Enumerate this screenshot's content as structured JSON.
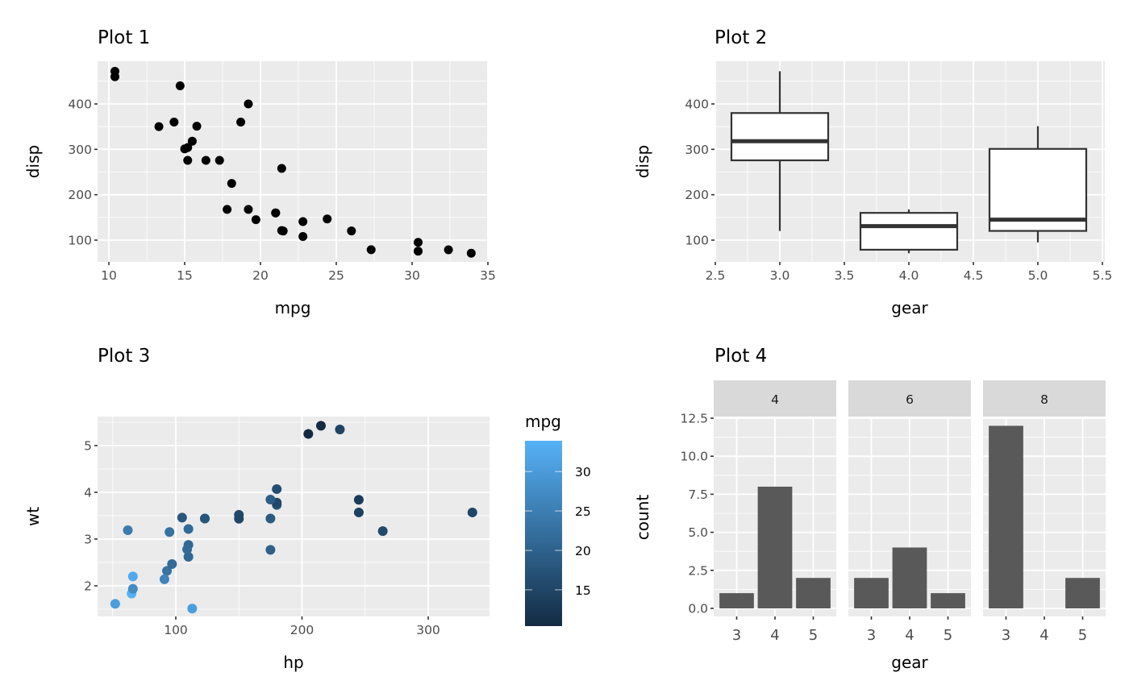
{
  "chart_data": [
    {
      "id": "plot1",
      "type": "scatter",
      "title": "Plot 1",
      "xlabel": "mpg",
      "ylabel": "disp",
      "xlim": [
        9.2,
        35.1
      ],
      "ylim": [
        52,
        490
      ],
      "xticks": [
        10,
        15,
        20,
        25,
        30,
        35
      ],
      "yticks": [
        100,
        200,
        300,
        400
      ],
      "grid": true,
      "point_color": "#000000",
      "points": [
        {
          "x": 21.0,
          "y": 160
        },
        {
          "x": 21.0,
          "y": 160
        },
        {
          "x": 22.8,
          "y": 108
        },
        {
          "x": 21.4,
          "y": 258
        },
        {
          "x": 18.7,
          "y": 360
        },
        {
          "x": 18.1,
          "y": 225
        },
        {
          "x": 14.3,
          "y": 360
        },
        {
          "x": 24.4,
          "y": 146.7
        },
        {
          "x": 22.8,
          "y": 140.8
        },
        {
          "x": 19.2,
          "y": 167.6
        },
        {
          "x": 17.8,
          "y": 167.6
        },
        {
          "x": 16.4,
          "y": 275.8
        },
        {
          "x": 17.3,
          "y": 275.8
        },
        {
          "x": 15.2,
          "y": 275.8
        },
        {
          "x": 10.4,
          "y": 472
        },
        {
          "x": 10.4,
          "y": 460
        },
        {
          "x": 14.7,
          "y": 440
        },
        {
          "x": 32.4,
          "y": 78.7
        },
        {
          "x": 30.4,
          "y": 75.7
        },
        {
          "x": 33.9,
          "y": 71.1
        },
        {
          "x": 21.5,
          "y": 120.1
        },
        {
          "x": 15.5,
          "y": 318
        },
        {
          "x": 15.2,
          "y": 304
        },
        {
          "x": 13.3,
          "y": 350
        },
        {
          "x": 19.2,
          "y": 400
        },
        {
          "x": 27.3,
          "y": 79
        },
        {
          "x": 26.0,
          "y": 120.3
        },
        {
          "x": 30.4,
          "y": 95.1
        },
        {
          "x": 15.8,
          "y": 351
        },
        {
          "x": 19.7,
          "y": 145
        },
        {
          "x": 15.0,
          "y": 301
        },
        {
          "x": 21.4,
          "y": 121
        }
      ]
    },
    {
      "id": "plot2",
      "type": "boxplot",
      "title": "Plot 2",
      "xlabel": "gear",
      "ylabel": "disp",
      "xlim": [
        2.5,
        5.5
      ],
      "ylim": [
        52,
        490
      ],
      "xticks": [
        "2.5",
        "3.0",
        "3.5",
        "4.0",
        "4.5",
        "5.0",
        "5.5"
      ],
      "yticks": [
        100,
        200,
        300,
        400
      ],
      "grid": true,
      "boxes": [
        {
          "x": 3,
          "lower_whisker": 120.1,
          "q1": 275.8,
          "median": 318,
          "q3": 380,
          "upper_whisker": 472
        },
        {
          "x": 4,
          "lower_whisker": 71.1,
          "q1": 78.85,
          "median": 130.9,
          "q3": 160,
          "upper_whisker": 167.6
        },
        {
          "x": 5,
          "lower_whisker": 95.1,
          "q1": 120.3,
          "median": 145,
          "q3": 301,
          "upper_whisker": 351
        }
      ]
    },
    {
      "id": "plot3",
      "type": "scatter",
      "title": "Plot 3",
      "xlabel": "hp",
      "ylabel": "wt",
      "xlim": [
        34,
        352
      ],
      "ylim": [
        1.3,
        5.6
      ],
      "xticks": [
        100,
        200,
        300
      ],
      "yticks": [
        2,
        3,
        4,
        5
      ],
      "grid": true,
      "color_scale": {
        "title": "mpg",
        "low": 10.4,
        "high": 33.9,
        "low_color": "#132B43",
        "high_color": "#56B1F7",
        "ticks": [
          15,
          20,
          25,
          30
        ]
      },
      "points": [
        {
          "x": 110,
          "y": 2.62,
          "c": 21.0
        },
        {
          "x": 110,
          "y": 2.875,
          "c": 21.0
        },
        {
          "x": 93,
          "y": 2.32,
          "c": 22.8
        },
        {
          "x": 110,
          "y": 3.215,
          "c": 21.4
        },
        {
          "x": 175,
          "y": 3.44,
          "c": 18.7
        },
        {
          "x": 105,
          "y": 3.46,
          "c": 18.1
        },
        {
          "x": 245,
          "y": 3.57,
          "c": 14.3
        },
        {
          "x": 62,
          "y": 3.19,
          "c": 24.4
        },
        {
          "x": 95,
          "y": 3.15,
          "c": 22.8
        },
        {
          "x": 123,
          "y": 3.44,
          "c": 19.2
        },
        {
          "x": 123,
          "y": 3.44,
          "c": 17.8
        },
        {
          "x": 180,
          "y": 4.07,
          "c": 16.4
        },
        {
          "x": 180,
          "y": 3.73,
          "c": 17.3
        },
        {
          "x": 180,
          "y": 3.78,
          "c": 15.2
        },
        {
          "x": 205,
          "y": 5.25,
          "c": 10.4
        },
        {
          "x": 215,
          "y": 5.424,
          "c": 10.4
        },
        {
          "x": 230,
          "y": 5.345,
          "c": 14.7
        },
        {
          "x": 66,
          "y": 2.2,
          "c": 32.4
        },
        {
          "x": 52,
          "y": 1.615,
          "c": 30.4
        },
        {
          "x": 65,
          "y": 1.835,
          "c": 33.9
        },
        {
          "x": 97,
          "y": 2.465,
          "c": 21.5
        },
        {
          "x": 150,
          "y": 3.52,
          "c": 15.5
        },
        {
          "x": 150,
          "y": 3.435,
          "c": 15.2
        },
        {
          "x": 245,
          "y": 3.84,
          "c": 13.3
        },
        {
          "x": 175,
          "y": 3.845,
          "c": 19.2
        },
        {
          "x": 66,
          "y": 1.935,
          "c": 27.3
        },
        {
          "x": 91,
          "y": 2.14,
          "c": 26.0
        },
        {
          "x": 113,
          "y": 1.513,
          "c": 30.4
        },
        {
          "x": 264,
          "y": 3.17,
          "c": 15.8
        },
        {
          "x": 175,
          "y": 2.77,
          "c": 19.7
        },
        {
          "x": 335,
          "y": 3.57,
          "c": 15.0
        },
        {
          "x": 109,
          "y": 2.78,
          "c": 21.4
        }
      ]
    },
    {
      "id": "plot4",
      "type": "bar",
      "title": "Plot 4",
      "xlabel": "gear",
      "ylabel": "count",
      "ylim": [
        0,
        12.6
      ],
      "yticks": [
        "0.0",
        "2.5",
        "5.0",
        "7.5",
        "10.0",
        "12.5"
      ],
      "categories": [
        "3",
        "4",
        "5"
      ],
      "bar_color": "#595959",
      "facets": [
        {
          "label": "4",
          "values": [
            1,
            8,
            2
          ]
        },
        {
          "label": "6",
          "values": [
            2,
            4,
            1
          ]
        },
        {
          "label": "8",
          "values": [
            12,
            0,
            2
          ]
        }
      ]
    }
  ]
}
